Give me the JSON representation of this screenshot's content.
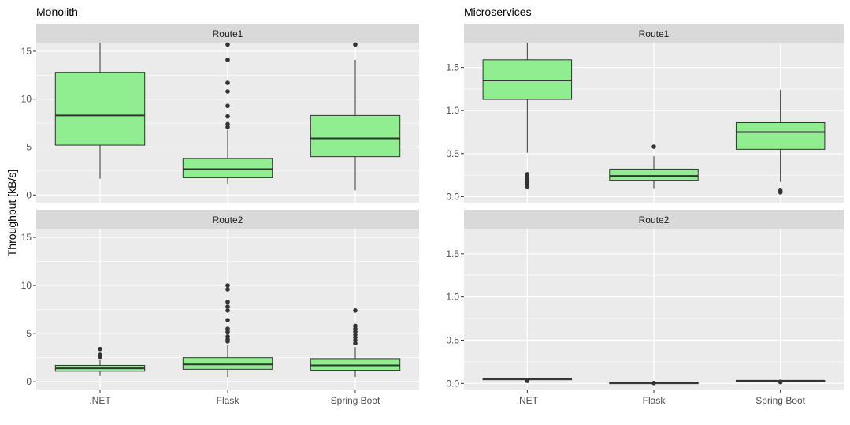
{
  "figure": {
    "ylabel": "Throughput [kB/s]",
    "colors": {
      "box_fill": "#90EE90",
      "panel_bg": "#EBEBEB",
      "strip_bg": "#D9D9D9",
      "grid": "#FFFFFF",
      "ink": "#333333",
      "tick_text": "#4D4D4D"
    }
  },
  "chart_data": [
    {
      "type": "box",
      "title": "Monolith",
      "categories": [
        ".NET",
        "Flask",
        "Spring Boot"
      ],
      "ylim": [
        -0.8,
        15.9
      ],
      "yticks": [
        0,
        5,
        10,
        15
      ],
      "ytick_labels": [
        "0",
        "5",
        "10",
        "15"
      ],
      "facets": [
        {
          "strip": "Route1",
          "boxes": [
            {
              "category": ".NET",
              "q1": 5.2,
              "median": 8.3,
              "q3": 12.8,
              "whisker_low": 1.7,
              "whisker_high": 15.9,
              "outliers": []
            },
            {
              "category": "Flask",
              "q1": 1.8,
              "median": 2.7,
              "q3": 3.8,
              "whisker_low": 1.2,
              "whisker_high": 6.8,
              "outliers": [
                7.1,
                7.4,
                8.2,
                9.3,
                10.8,
                11.7,
                14.1,
                15.7
              ]
            },
            {
              "category": "Spring Boot",
              "q1": 4.0,
              "median": 5.9,
              "q3": 8.3,
              "whisker_low": 0.5,
              "whisker_high": 14.1,
              "outliers": [
                15.7
              ]
            }
          ]
        },
        {
          "strip": "Route2",
          "boxes": [
            {
              "category": ".NET",
              "q1": 1.1,
              "median": 1.4,
              "q3": 1.7,
              "whisker_low": 0.6,
              "whisker_high": 2.3,
              "outliers": [
                2.6,
                2.8,
                3.4
              ]
            },
            {
              "category": "Flask",
              "q1": 1.3,
              "median": 1.8,
              "q3": 2.5,
              "whisker_low": 0.5,
              "whisker_high": 3.8,
              "outliers": [
                4.2,
                4.4,
                4.7,
                5.2,
                5.5,
                6.4,
                7.4,
                7.8,
                8.3,
                9.6,
                10.0
              ]
            },
            {
              "category": "Spring Boot",
              "q1": 1.2,
              "median": 1.7,
              "q3": 2.4,
              "whisker_low": 0.5,
              "whisker_high": 3.6,
              "outliers": [
                4.0,
                4.3,
                4.6,
                4.9,
                5.2,
                5.5,
                5.8,
                7.4
              ]
            }
          ]
        }
      ]
    },
    {
      "type": "box",
      "title": "Microservices",
      "categories": [
        ".NET",
        "Flask",
        "Spring Boot"
      ],
      "ylim": [
        -0.07,
        1.79
      ],
      "yticks": [
        0.0,
        0.5,
        1.0,
        1.5
      ],
      "ytick_labels": [
        "0.0",
        "0.5",
        "1.0",
        "1.5"
      ],
      "facets": [
        {
          "strip": "Route1",
          "boxes": [
            {
              "category": ".NET",
              "q1": 1.13,
              "median": 1.35,
              "q3": 1.59,
              "whisker_low": 0.51,
              "whisker_high": 1.79,
              "outliers": [
                0.11,
                0.13,
                0.15,
                0.17,
                0.2,
                0.23,
                0.26
              ]
            },
            {
              "category": "Flask",
              "q1": 0.19,
              "median": 0.24,
              "q3": 0.32,
              "whisker_low": 0.09,
              "whisker_high": 0.47,
              "outliers": [
                0.58
              ]
            },
            {
              "category": "Spring Boot",
              "q1": 0.55,
              "median": 0.75,
              "q3": 0.86,
              "whisker_low": 0.17,
              "whisker_high": 1.24,
              "outliers": [
                0.05,
                0.07
              ]
            }
          ]
        },
        {
          "strip": "Route2",
          "boxes": [
            {
              "category": ".NET",
              "q1": 0.052,
              "median": 0.054,
              "q3": 0.056,
              "whisker_low": 0.05,
              "whisker_high": 0.058,
              "outliers": [
                0.03,
                0.035
              ]
            },
            {
              "category": "Flask",
              "q1": 0.009,
              "median": 0.01,
              "q3": 0.011,
              "whisker_low": 0.008,
              "whisker_high": 0.012,
              "outliers": [
                0.005
              ]
            },
            {
              "category": "Spring Boot",
              "q1": 0.03,
              "median": 0.032,
              "q3": 0.034,
              "whisker_low": 0.028,
              "whisker_high": 0.036,
              "outliers": [
                0.015,
                0.02
              ]
            }
          ]
        }
      ]
    }
  ]
}
